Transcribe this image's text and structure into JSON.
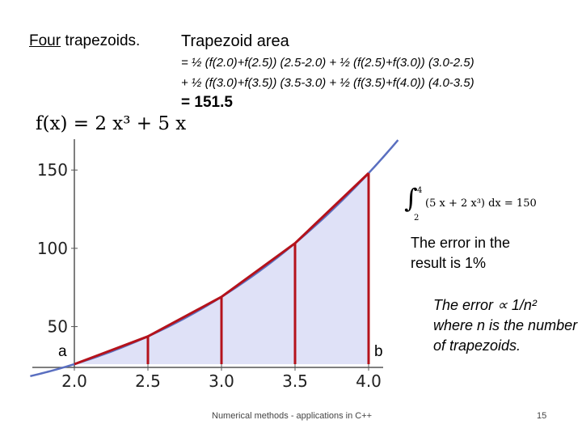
{
  "header": {
    "four_underlined": "Four",
    "four_rest": " trapezoids.",
    "area_title": "Trapezoid area",
    "calc_line1": "= ½ (f(2.0)+f(2.5)) (2.5-2.0) + ½ (f(2.5)+f(3.0)) (3.0-2.5)",
    "calc_line2": "+ ½ (f(3.0)+f(3.5)) (3.5-3.0) + ½ (f(3.5)+f(4.0)) (4.0-3.5)",
    "result": "= 151.5"
  },
  "function_label": "f(x) = 2 x³ + 5 x",
  "integral": {
    "upper": "4",
    "lower": "2",
    "body": "(5 x + 2 x³) dx = 150"
  },
  "notes": {
    "error_result": "The error in the result is 1%",
    "error_scaling": "The error ∝ 1/n² where n is the number of trapezoids."
  },
  "endpoint_labels": {
    "a": "a",
    "b": "b"
  },
  "footer": "Numerical methods - applications in C++",
  "page_number": "15",
  "colors": {
    "curve": "#5a6fc0",
    "fill": "#dfe1f7",
    "trapezoid": "#b5121b"
  },
  "chart_data": {
    "type": "line",
    "title": "f(x) = 2 x³ + 5 x",
    "function": "2x^3+5x",
    "x_ticks": [
      "2.0",
      "2.5",
      "3.0",
      "3.5",
      "4.0"
    ],
    "y_ticks": [
      "50",
      "100",
      "150"
    ],
    "xlim": [
      1.8,
      4.2
    ],
    "ylim": [
      25,
      185
    ],
    "shaded_interval": [
      2.0,
      4.0
    ],
    "trapezoid_nodes": {
      "x": [
        2.0,
        2.5,
        3.0,
        3.5,
        4.0
      ],
      "y": [
        26,
        43.75,
        69,
        103.25,
        148
      ]
    },
    "grid": false
  }
}
